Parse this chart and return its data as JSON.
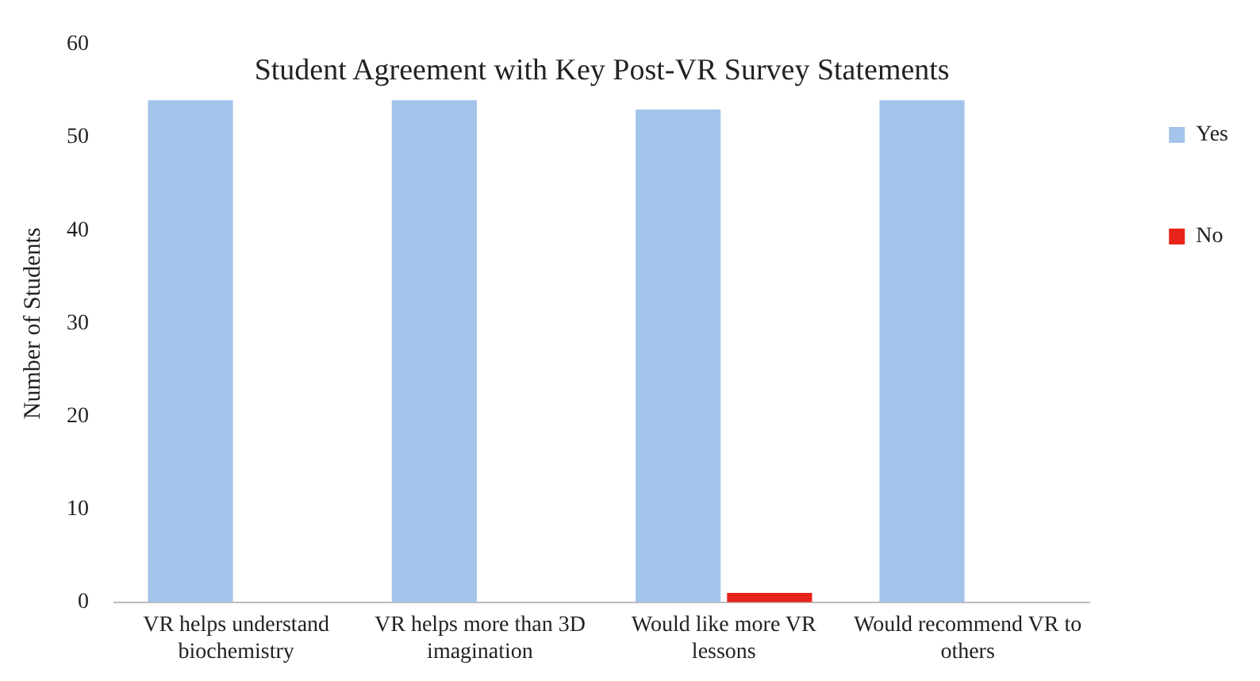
{
  "chart_data": {
    "type": "bar",
    "title": "Student Agreement with Key Post-VR Survey Statements",
    "ylabel": "Number of Students",
    "categories": [
      "VR helps understand biochemistry",
      "VR helps more than 3D imagination",
      "Would like more VR lessons",
      "Would recommend VR to others"
    ],
    "series": [
      {
        "name": "Yes",
        "color": "#a3c4eb",
        "values": [
          54,
          54,
          53,
          54
        ]
      },
      {
        "name": "No",
        "color": "#e8231b",
        "values": [
          0,
          0,
          1,
          0
        ]
      }
    ],
    "ylim": [
      0,
      60
    ],
    "yticks": [
      0,
      10,
      20,
      30,
      40,
      50,
      60
    ],
    "grid": false,
    "legend": "top right"
  }
}
